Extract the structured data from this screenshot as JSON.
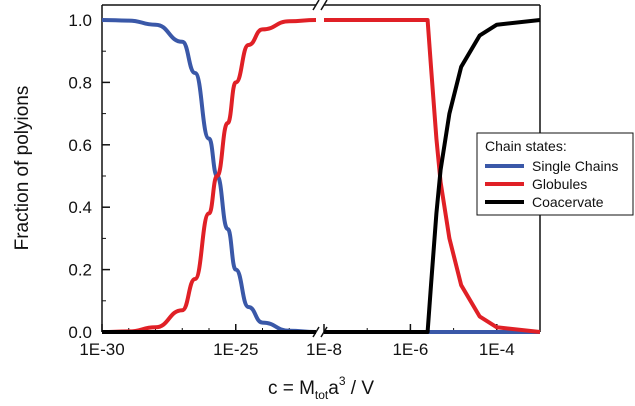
{
  "chart_data": {
    "type": "line",
    "x_scale": "log",
    "axis_break": true,
    "xlabel": "c = M",
    "xlabel_sub": "tot",
    "xlabel_mid": "a",
    "xlabel_sup": "3",
    "xlabel_tail": " / V",
    "ylabel": "Fraction of polyions",
    "ylim": [
      0,
      1
    ],
    "yticks": [
      "0.0",
      "0.2",
      "0.4",
      "0.6",
      "0.8",
      "1.0"
    ],
    "xticks_left": [
      "1E-30",
      "1E-25"
    ],
    "xticks_right": [
      "1E-8",
      "1E-6",
      "1E-4"
    ],
    "xrange_left": [
      1e-30,
      1e-22
    ],
    "xrange_right": [
      1e-08,
      0.001
    ],
    "grid": false,
    "legend": {
      "title": "Chain states:",
      "placement": "right",
      "entries": [
        "Single Chains",
        "Globules",
        "Coacervate"
      ]
    },
    "series": [
      {
        "name": "Single Chains",
        "color": "#3a58a8",
        "left": [
          [
            1e-30,
            1.0
          ],
          [
            1e-29,
            0.998
          ],
          [
            1e-28,
            0.985
          ],
          [
            1e-27,
            0.93
          ],
          [
            3e-27,
            0.83
          ],
          [
            1e-26,
            0.62
          ],
          [
            2e-26,
            0.5
          ],
          [
            5e-26,
            0.33
          ],
          [
            1e-25,
            0.2
          ],
          [
            3e-25,
            0.08
          ],
          [
            1e-24,
            0.03
          ],
          [
            1e-23,
            0.004
          ],
          [
            1e-22,
            0.0
          ]
        ],
        "right": [
          [
            1e-08,
            0.0
          ],
          [
            0.001,
            0.0
          ]
        ]
      },
      {
        "name": "Globules",
        "color": "#e02026",
        "left": [
          [
            1e-30,
            0.0
          ],
          [
            1e-29,
            0.002
          ],
          [
            1e-28,
            0.015
          ],
          [
            1e-27,
            0.07
          ],
          [
            3e-27,
            0.17
          ],
          [
            1e-26,
            0.38
          ],
          [
            2e-26,
            0.5
          ],
          [
            5e-26,
            0.67
          ],
          [
            1e-25,
            0.8
          ],
          [
            3e-25,
            0.92
          ],
          [
            1e-24,
            0.97
          ],
          [
            1e-23,
            0.996
          ],
          [
            1e-22,
            1.0
          ]
        ],
        "right": [
          [
            1e-08,
            1.0
          ],
          [
            2.5e-06,
            1.0
          ],
          [
            3e-06,
            0.85
          ],
          [
            4e-06,
            0.62
          ],
          [
            5e-06,
            0.48
          ],
          [
            8e-06,
            0.3
          ],
          [
            1.5e-05,
            0.15
          ],
          [
            4e-05,
            0.05
          ],
          [
            0.0001,
            0.015
          ],
          [
            0.001,
            0.0
          ]
        ]
      },
      {
        "name": "Coacervate",
        "color": "#000000",
        "left": [
          [
            1e-30,
            0.0
          ],
          [
            1e-22,
            0.0
          ]
        ],
        "right": [
          [
            1e-08,
            0.0
          ],
          [
            2.5e-06,
            0.0
          ],
          [
            3e-06,
            0.15
          ],
          [
            4e-06,
            0.38
          ],
          [
            5e-06,
            0.52
          ],
          [
            8e-06,
            0.7
          ],
          [
            1.5e-05,
            0.85
          ],
          [
            4e-05,
            0.95
          ],
          [
            0.0001,
            0.985
          ],
          [
            0.001,
            1.0
          ]
        ]
      }
    ]
  }
}
